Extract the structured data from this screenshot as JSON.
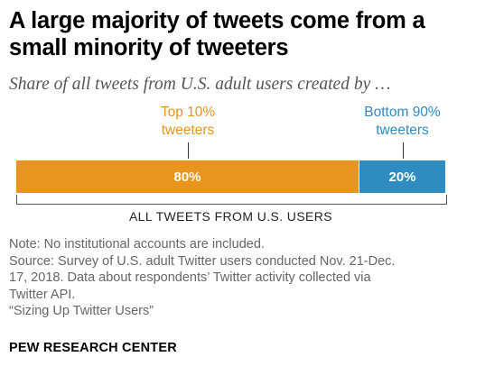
{
  "title": "A large majority of tweets come from a small minority of tweeters",
  "subtitle": "Share of all tweets from U.S. adult users created by …",
  "chart_data": {
    "type": "bar",
    "orientation": "horizontal",
    "stacked": true,
    "categories": [
      "Top 10% tweeters",
      "Bottom 90% tweeters"
    ],
    "values": [
      80,
      20
    ],
    "value_labels": [
      "80%",
      "20%"
    ],
    "label_lines": [
      [
        "Top 10%",
        "tweeters"
      ],
      [
        "Bottom 90%",
        "tweeters"
      ]
    ],
    "colors": [
      "#e8951e",
      "#2e8cc0"
    ],
    "xlabel": "ALL TWEETS FROM U.S. USERS",
    "xlim": [
      0,
      100
    ],
    "grid": false,
    "legend": "none"
  },
  "notes": {
    "lines": [
      "Note: No institutional accounts are included.",
      "Source: Survey of U.S. adult Twitter users conducted Nov. 21-Dec.",
      "17, 2018. Data about respondents’ Twitter activity collected via",
      "Twitter API.",
      "“Sizing Up Twitter Users”"
    ]
  },
  "footer": "PEW RESEARCH CENTER"
}
